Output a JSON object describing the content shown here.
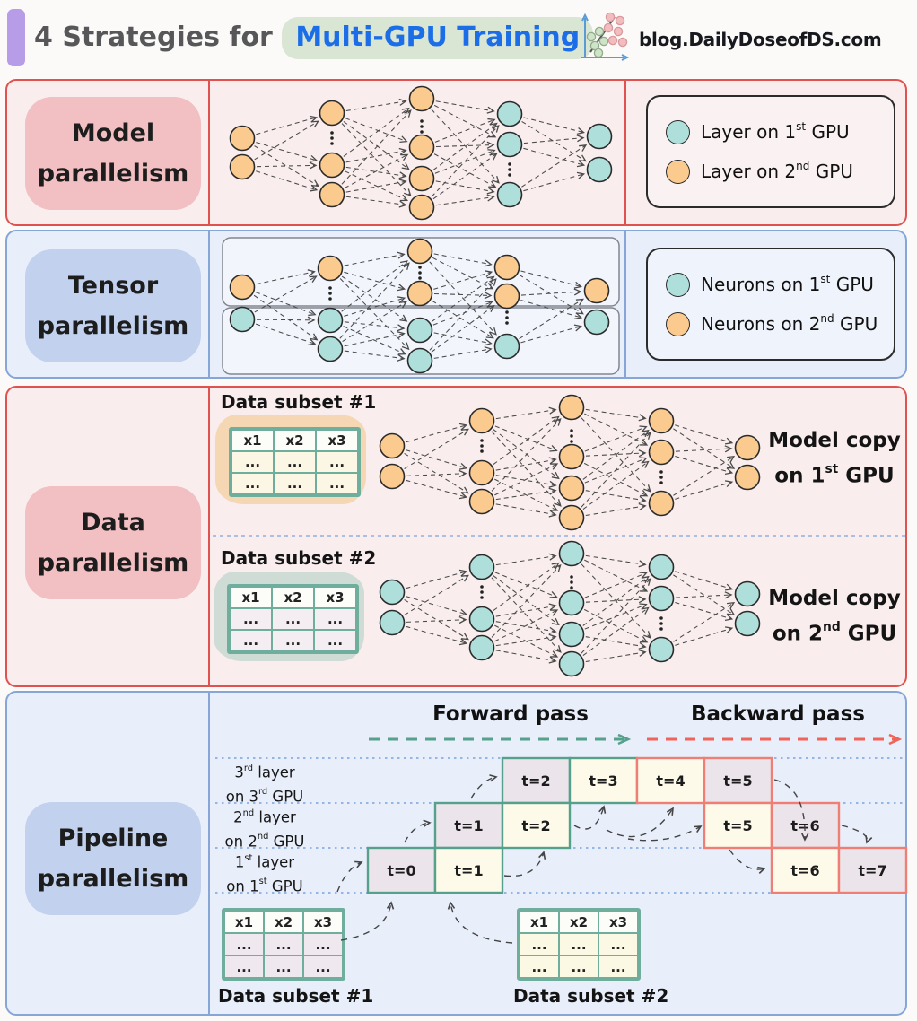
{
  "header": {
    "title_prefix": "4 Strategies for",
    "title_highlight": "Multi-GPU Training",
    "brand": "blog.DailyDoseofDS.com"
  },
  "colors": {
    "accent_bar": "#b79ce8",
    "title_text": "#57575a",
    "highlight_text": "#1b6ee8",
    "highlight_bg": "#d9e6d3",
    "brand_text": "#17191f",
    "panel_red_border": "#e0524f",
    "panel_red_bg": "#f9eded",
    "panel_blue_border": "#85a6d6",
    "panel_blue_bg": "#e9effa",
    "label_pink_bg": "#f2bfc2",
    "label_blue_bg": "#c2d2ee",
    "neuron_gpu1": "#aedfdb",
    "neuron_gpu2": "#fbca8f",
    "edge": "#4a4a4a",
    "forward": "#56a18c",
    "backward": "#ef6358",
    "block_fwd_border": "#56a18c",
    "block_bwd_border": "#ef7f74",
    "subset1_fill": "#ece4eb",
    "subset2_fill": "#fdfae9",
    "guide_dotted": "#79a3dc",
    "table_border": "#6fae9d",
    "blob_subset1": "#f6d7b4",
    "blob_subset2": "#cfdcd6"
  },
  "model_panel": {
    "label_line1": "Model",
    "label_line2": "parallelism",
    "legend": [
      {
        "color_key": "neuron_gpu1",
        "pre": "Layer on 1",
        "sup": "st",
        "post": " GPU"
      },
      {
        "color_key": "neuron_gpu2",
        "pre": "Layer on 2",
        "sup": "nd",
        "post": " GPU"
      }
    ]
  },
  "tensor_panel": {
    "label_line1": "Tensor",
    "label_line2": "parallelism",
    "legend": [
      {
        "color_key": "neuron_gpu1",
        "pre": "Neurons on 1",
        "sup": "st",
        "post": " GPU"
      },
      {
        "color_key": "neuron_gpu2",
        "pre": "Neurons on 2",
        "sup": "nd",
        "post": " GPU"
      }
    ]
  },
  "data_panel": {
    "label_line1": "Data",
    "label_line2": "parallelism",
    "subset1_label": "Data subset #1",
    "subset2_label": "Data subset #2",
    "copy1_line1": "Model copy",
    "copy1_line2": {
      "pre": "on 1",
      "sup": "st",
      "post": " GPU"
    },
    "copy2_line1": "Model copy",
    "copy2_line2": {
      "pre": "on 2",
      "sup": "nd",
      "post": " GPU"
    }
  },
  "pipeline_panel": {
    "label_line1": "Pipeline",
    "label_line2": "parallelism",
    "forward_label": "Forward pass",
    "backward_label": "Backward pass",
    "subset1_label": "Data subset #1",
    "subset2_label": "Data subset #2",
    "rows": [
      {
        "l1": {
          "pre": "3",
          "sup": "rd",
          "post": " layer"
        },
        "l2": {
          "pre": "on 3",
          "sup": "rd",
          "post": " GPU"
        },
        "blocks": [
          {
            "t": 2,
            "label": "t=2",
            "phase": "forward",
            "subset": 1
          },
          {
            "t": 3,
            "label": "t=3",
            "phase": "forward",
            "subset": 2
          },
          {
            "t": 4,
            "label": "t=4",
            "phase": "backward",
            "subset": 2
          },
          {
            "t": 5,
            "label": "t=5",
            "phase": "backward",
            "subset": 1
          }
        ]
      },
      {
        "l1": {
          "pre": "2",
          "sup": "nd",
          "post": " layer"
        },
        "l2": {
          "pre": "on 2",
          "sup": "nd",
          "post": " GPU"
        },
        "blocks": [
          {
            "t": 1,
            "label": "t=1",
            "phase": "forward",
            "subset": 1
          },
          {
            "t": 2,
            "label": "t=2",
            "phase": "forward",
            "subset": 2
          },
          {
            "t": 5,
            "label": "t=5",
            "phase": "backward",
            "subset": 2
          },
          {
            "t": 6,
            "label": "t=6",
            "phase": "backward",
            "subset": 1
          }
        ]
      },
      {
        "l1": {
          "pre": "1",
          "sup": "st",
          "post": " layer"
        },
        "l2": {
          "pre": "on 1",
          "sup": "st",
          "post": " GPU"
        },
        "blocks": [
          {
            "t": 0,
            "label": "t=0",
            "phase": "forward",
            "subset": 1
          },
          {
            "t": 1,
            "label": "t=1",
            "phase": "forward",
            "subset": 2
          },
          {
            "t": 6,
            "label": "t=6",
            "phase": "backward",
            "subset": 2
          },
          {
            "t": 7,
            "label": "t=7",
            "phase": "backward",
            "subset": 1
          }
        ]
      }
    ]
  },
  "data_table": {
    "headers": [
      "x1",
      "x2",
      "x3"
    ],
    "rows": [
      [
        "...",
        "...",
        "..."
      ],
      [
        "...",
        "...",
        "..."
      ]
    ]
  },
  "networks": [
    {
      "name": "model-parallelism-network",
      "cols": [
        270,
        370,
        470,
        568,
        668
      ],
      "layers": [
        [
          [
            154,
            "o"
          ],
          [
            186,
            "o"
          ]
        ],
        [
          [
            126,
            "o"
          ],
          [
            154,
            "d"
          ],
          [
            184,
            "o"
          ],
          [
            217,
            "o"
          ]
        ],
        [
          [
            110,
            "o"
          ],
          [
            141,
            "d"
          ],
          [
            164,
            "o"
          ],
          [
            199,
            "o"
          ],
          [
            231,
            "o"
          ]
        ],
        [
          [
            127,
            "t"
          ],
          [
            161,
            "t"
          ],
          [
            189,
            "d"
          ],
          [
            217,
            "t"
          ]
        ],
        [
          [
            152,
            "t"
          ],
          [
            189,
            "t"
          ]
        ]
      ]
    },
    {
      "name": "tensor-parallelism-network",
      "cols": [
        270,
        368,
        468,
        565,
        665
      ],
      "layers": [
        [
          [
            320,
            "o"
          ],
          [
            356,
            "t"
          ]
        ],
        [
          [
            299,
            "o"
          ],
          [
            327,
            "d"
          ],
          [
            357,
            "t"
          ],
          [
            389,
            "t"
          ]
        ],
        [
          [
            280,
            "o"
          ],
          [
            304,
            "d"
          ],
          [
            327,
            "o"
          ],
          [
            368,
            "t"
          ],
          [
            402,
            "t"
          ]
        ],
        [
          [
            298,
            "o"
          ],
          [
            330,
            "o"
          ],
          [
            354,
            "d"
          ],
          [
            386,
            "t"
          ]
        ],
        [
          [
            324,
            "o"
          ],
          [
            359,
            "t"
          ]
        ]
      ]
    },
    {
      "name": "data-parallelism-network-gpu1",
      "cols": [
        437,
        537,
        637,
        737,
        833
      ],
      "layers": [
        [
          [
            497,
            "o"
          ],
          [
            531,
            "o"
          ]
        ],
        [
          [
            469,
            "o"
          ],
          [
            497,
            "d"
          ],
          [
            527,
            "o"
          ],
          [
            559,
            "o"
          ]
        ],
        [
          [
            454,
            "o"
          ],
          [
            486,
            "d"
          ],
          [
            509,
            "o"
          ],
          [
            544,
            "o"
          ],
          [
            577,
            "o"
          ]
        ],
        [
          [
            469,
            "o"
          ],
          [
            504,
            "o"
          ],
          [
            532,
            "d"
          ],
          [
            561,
            "o"
          ]
        ],
        [
          [
            499,
            "o"
          ],
          [
            532,
            "o"
          ]
        ]
      ]
    },
    {
      "name": "data-parallelism-network-gpu2",
      "cols": [
        437,
        537,
        637,
        737,
        833
      ],
      "layers": [
        [
          [
            660,
            "t"
          ],
          [
            694,
            "t"
          ]
        ],
        [
          [
            632,
            "t"
          ],
          [
            660,
            "d"
          ],
          [
            690,
            "t"
          ],
          [
            722,
            "t"
          ]
        ],
        [
          [
            617,
            "t"
          ],
          [
            649,
            "d"
          ],
          [
            672,
            "t"
          ],
          [
            707,
            "t"
          ],
          [
            740,
            "t"
          ]
        ],
        [
          [
            632,
            "t"
          ],
          [
            667,
            "t"
          ],
          [
            695,
            "d"
          ],
          [
            724,
            "t"
          ]
        ],
        [
          [
            662,
            "t"
          ],
          [
            695,
            "t"
          ]
        ]
      ]
    }
  ]
}
